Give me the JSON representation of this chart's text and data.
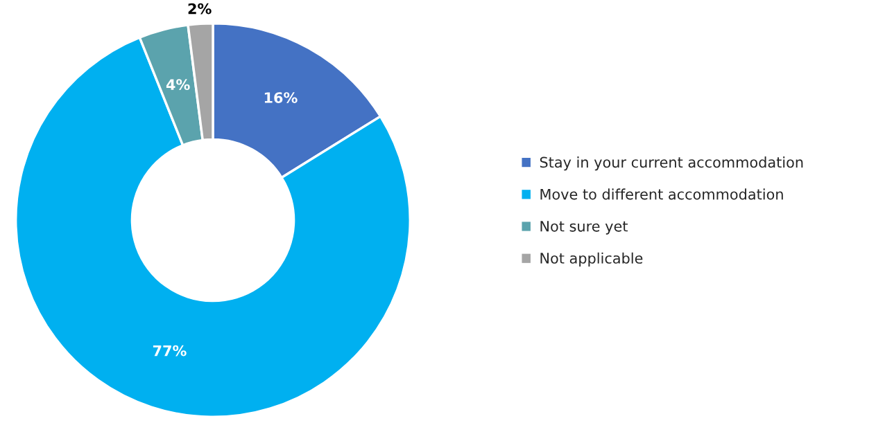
{
  "chart_data": {
    "type": "donut",
    "categories": [
      "Stay in your current accommodation",
      "Move to different accommodation",
      "Not sure yet",
      "Not applicable"
    ],
    "values": [
      16,
      77,
      4,
      2
    ],
    "colors": [
      "#4472c4",
      "#00b0f0",
      "#5ba3ad",
      "#a5a5a5"
    ],
    "value_labels": [
      "16%",
      "77%",
      "4%",
      "2%"
    ],
    "legend": "right"
  }
}
